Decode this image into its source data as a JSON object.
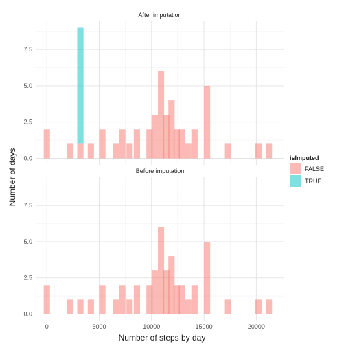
{
  "chart_data": {
    "type": "bar",
    "xlabel": "Number of steps by day",
    "ylabel": "Number of days",
    "xlim": [
      -1000,
      22600
    ],
    "ylim": [
      -0.45,
      9.45
    ],
    "x_ticks": [
      0,
      5000,
      10000,
      15000,
      20000
    ],
    "x_tick_labels": [
      "0",
      "5000",
      "10000",
      "15000",
      "20000"
    ],
    "y_ticks": [
      0,
      2.5,
      5,
      7.5
    ],
    "y_tick_labels": [
      "0.0",
      "2.5",
      "5.0",
      "7.5"
    ],
    "bin_width": 600,
    "grid": true,
    "legend": {
      "title": "isImputed",
      "position": "right",
      "entries": [
        {
          "label": "FALSE",
          "color": "#F8766D"
        },
        {
          "label": "TRUE",
          "color": "#00BFC4"
        }
      ]
    },
    "facets": [
      {
        "title": "After imputation",
        "series": [
          {
            "name": "FALSE",
            "color": "#F8766D",
            "bins": [
              {
                "x": 0,
                "y": 2
              },
              {
                "x": 2200,
                "y": 1
              },
              {
                "x": 3200,
                "y": 1
              },
              {
                "x": 4200,
                "y": 1
              },
              {
                "x": 5300,
                "y": 2
              },
              {
                "x": 6600,
                "y": 1
              },
              {
                "x": 7200,
                "y": 2
              },
              {
                "x": 7900,
                "y": 1
              },
              {
                "x": 8600,
                "y": 2
              },
              {
                "x": 9800,
                "y": 2
              },
              {
                "x": 10300,
                "y": 3
              },
              {
                "x": 10900,
                "y": 6
              },
              {
                "x": 11400,
                "y": 3
              },
              {
                "x": 11900,
                "y": 4
              },
              {
                "x": 12400,
                "y": 2
              },
              {
                "x": 12900,
                "y": 2
              },
              {
                "x": 13500,
                "y": 1
              },
              {
                "x": 14100,
                "y": 2
              },
              {
                "x": 15300,
                "y": 5
              },
              {
                "x": 17300,
                "y": 1
              },
              {
                "x": 20200,
                "y": 1
              },
              {
                "x": 21200,
                "y": 1
              }
            ]
          },
          {
            "name": "TRUE",
            "color": "#00BFC4",
            "bins": [
              {
                "x": 3200,
                "y": 8,
                "base": 1
              }
            ]
          }
        ]
      },
      {
        "title": "Before imputation",
        "series": [
          {
            "name": "FALSE",
            "color": "#F8766D",
            "bins": [
              {
                "x": 0,
                "y": 2
              },
              {
                "x": 2200,
                "y": 1
              },
              {
                "x": 3200,
                "y": 1
              },
              {
                "x": 4200,
                "y": 1
              },
              {
                "x": 5300,
                "y": 2
              },
              {
                "x": 6600,
                "y": 1
              },
              {
                "x": 7200,
                "y": 2
              },
              {
                "x": 7900,
                "y": 1
              },
              {
                "x": 8600,
                "y": 2
              },
              {
                "x": 9800,
                "y": 2
              },
              {
                "x": 10300,
                "y": 3
              },
              {
                "x": 10900,
                "y": 6
              },
              {
                "x": 11400,
                "y": 3
              },
              {
                "x": 11900,
                "y": 4
              },
              {
                "x": 12400,
                "y": 2
              },
              {
                "x": 12900,
                "y": 2
              },
              {
                "x": 13500,
                "y": 1
              },
              {
                "x": 14100,
                "y": 2
              },
              {
                "x": 15300,
                "y": 5
              },
              {
                "x": 17300,
                "y": 1
              },
              {
                "x": 20200,
                "y": 1
              },
              {
                "x": 21200,
                "y": 1
              }
            ]
          }
        ]
      }
    ]
  }
}
